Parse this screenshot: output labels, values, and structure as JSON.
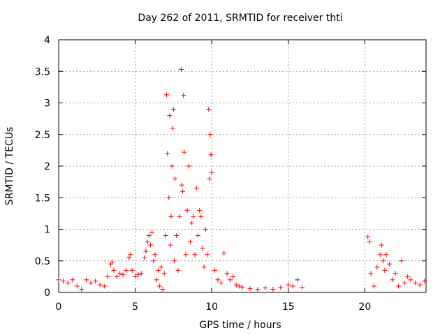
{
  "chart_data": {
    "type": "scatter",
    "title": "Day 262 of 2011, SRMTID for receiver thti",
    "xlabel": "GPS time / hours",
    "ylabel": "SRMTID / TECUs",
    "xlim": [
      0,
      24
    ],
    "ylim": [
      0,
      4
    ],
    "xticks": [
      0,
      5,
      10,
      15,
      20
    ],
    "xtick_labels": [
      "0",
      "5",
      "10",
      "15",
      "20"
    ],
    "yticks": [
      0,
      0.5,
      1,
      1.5,
      2,
      2.5,
      3,
      3.5,
      4
    ],
    "ytick_labels": [
      "0",
      "0.5",
      "1",
      "1.5",
      "2",
      "2.5",
      "3",
      "3.5",
      "4"
    ],
    "grid": true,
    "marker": "+",
    "color": "#ff0000",
    "series": [
      {
        "name": "SRMTID",
        "x": [
          0.0,
          0.3,
          0.6,
          0.9,
          1.2,
          1.5,
          1.8,
          2.1,
          2.4,
          2.7,
          3.0,
          3.2,
          3.4,
          3.5,
          3.6,
          3.8,
          4.0,
          4.2,
          4.4,
          4.6,
          4.7,
          4.8,
          5.0,
          5.2,
          5.4,
          5.6,
          5.7,
          5.8,
          5.9,
          6.0,
          6.1,
          6.2,
          6.3,
          6.4,
          6.5,
          6.6,
          6.7,
          6.8,
          6.9,
          7.0,
          7.05,
          7.1,
          7.2,
          7.25,
          7.3,
          7.35,
          7.4,
          7.45,
          7.5,
          7.55,
          7.6,
          7.7,
          7.8,
          7.9,
          8.0,
          8.05,
          8.1,
          8.15,
          8.2,
          8.3,
          8.4,
          8.5,
          8.6,
          8.7,
          8.8,
          8.9,
          9.0,
          9.1,
          9.2,
          9.3,
          9.4,
          9.5,
          9.6,
          9.7,
          9.8,
          9.85,
          9.9,
          9.95,
          10.0,
          10.2,
          10.4,
          10.6,
          10.8,
          11.0,
          11.2,
          11.4,
          11.6,
          11.8,
          12.0,
          12.5,
          13.0,
          13.5,
          14.0,
          14.5,
          15.0,
          15.3,
          15.6,
          15.9,
          20.2,
          20.3,
          20.4,
          20.6,
          20.8,
          21.0,
          21.1,
          21.2,
          21.3,
          21.4,
          21.6,
          21.8,
          22.0,
          22.2,
          22.4,
          22.6,
          22.8,
          23.0,
          23.3,
          23.6,
          23.9
        ],
        "y": [
          0.2,
          0.18,
          0.15,
          0.2,
          0.1,
          0.05,
          0.2,
          0.15,
          0.18,
          0.12,
          0.1,
          0.25,
          0.45,
          0.48,
          0.35,
          0.25,
          0.3,
          0.28,
          0.35,
          0.55,
          0.6,
          0.35,
          0.25,
          0.28,
          0.3,
          0.55,
          0.65,
          0.8,
          0.9,
          0.75,
          0.95,
          0.5,
          0.6,
          0.2,
          0.35,
          0.1,
          0.4,
          0.05,
          0.3,
          0.9,
          3.13,
          2.2,
          1.5,
          2.8,
          0.75,
          1.2,
          2.0,
          2.6,
          2.9,
          0.5,
          1.8,
          0.9,
          0.35,
          1.2,
          3.53,
          1.7,
          1.6,
          3.12,
          2.22,
          0.6,
          1.3,
          2.0,
          0.8,
          1.1,
          1.2,
          0.6,
          1.65,
          0.9,
          1.3,
          1.2,
          0.7,
          0.4,
          1.0,
          0.6,
          2.9,
          1.8,
          2.5,
          2.18,
          1.9,
          0.35,
          0.2,
          0.15,
          0.62,
          0.3,
          0.2,
          0.25,
          0.12,
          0.1,
          0.08,
          0.06,
          0.05,
          0.07,
          0.05,
          0.08,
          0.12,
          0.1,
          0.2,
          0.08,
          0.88,
          0.8,
          0.3,
          0.1,
          0.4,
          0.6,
          0.75,
          0.5,
          0.35,
          0.6,
          0.45,
          0.2,
          0.3,
          0.1,
          0.5,
          0.15,
          0.25,
          0.2,
          0.15,
          0.12,
          0.18
        ]
      }
    ]
  }
}
